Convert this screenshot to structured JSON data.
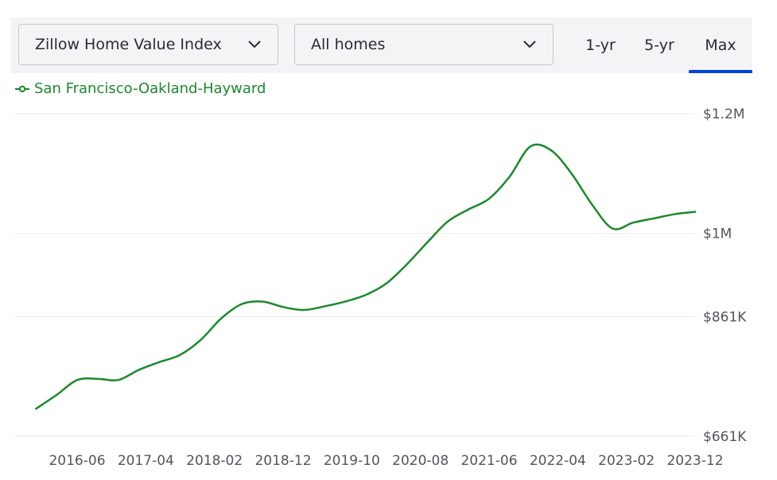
{
  "controls": {
    "metric_select": {
      "label": "Zillow Home Value Index",
      "icon": "chevron-down-icon"
    },
    "homes_select": {
      "label": "All homes",
      "icon": "chevron-down-icon"
    },
    "range_tabs": [
      {
        "label": "1-yr",
        "active": false
      },
      {
        "label": "5-yr",
        "active": false
      },
      {
        "label": "Max",
        "active": true
      }
    ],
    "accent_color": "#0041d9"
  },
  "chart_data": {
    "type": "line",
    "title": "",
    "xlabel": "",
    "ylabel": "",
    "x_tick_labels": [
      "2016-06",
      "2017-04",
      "2018-02",
      "2018-12",
      "2019-10",
      "2020-08",
      "2021-06",
      "2022-04",
      "2023-02",
      "2023-12"
    ],
    "y_tick_labels": [
      "$661K",
      "$861K",
      "$1M",
      "$1.2M"
    ],
    "y_tick_values": [
      661000,
      861000,
      1000000,
      1200000
    ],
    "ylim": [
      661000,
      1200000
    ],
    "grid": true,
    "legend_position": "top-left",
    "series": [
      {
        "name": "San Francisco-Oakland-Hayward",
        "color": "#1a8a2a",
        "x": [
          "2015-12",
          "2016-03",
          "2016-06",
          "2016-09",
          "2016-12",
          "2017-03",
          "2017-06",
          "2017-09",
          "2017-12",
          "2018-03",
          "2018-06",
          "2018-09",
          "2018-12",
          "2019-03",
          "2019-06",
          "2019-09",
          "2019-12",
          "2020-03",
          "2020-06",
          "2020-09",
          "2020-12",
          "2021-03",
          "2021-06",
          "2021-09",
          "2021-12",
          "2022-03",
          "2022-06",
          "2022-09",
          "2022-12",
          "2023-03",
          "2023-06",
          "2023-09",
          "2023-12"
        ],
        "y": [
          707000,
          730000,
          755000,
          757000,
          755000,
          772000,
          785000,
          797000,
          822000,
          858000,
          882000,
          886000,
          877000,
          872000,
          878000,
          886000,
          897000,
          916000,
          948000,
          985000,
          1020000,
          1040000,
          1058000,
          1095000,
          1145000,
          1139000,
          1100000,
          1048000,
          1008000,
          1018000,
          1025000,
          1032000,
          1036000
        ]
      }
    ]
  }
}
